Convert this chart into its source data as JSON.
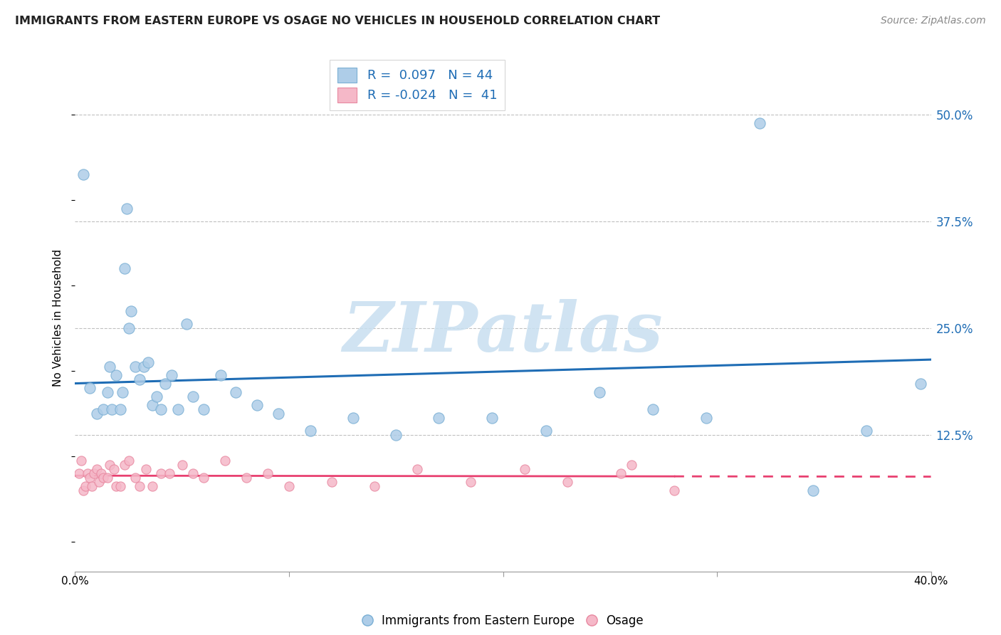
{
  "title": "IMMIGRANTS FROM EASTERN EUROPE VS OSAGE NO VEHICLES IN HOUSEHOLD CORRELATION CHART",
  "source": "Source: ZipAtlas.com",
  "ylabel": "No Vehicles in Household",
  "legend_label1": "Immigrants from Eastern Europe",
  "legend_label2": "Osage",
  "R1": 0.097,
  "N1": 44,
  "R2": -0.024,
  "N2": 41,
  "blue_fill": "#aecde8",
  "blue_edge": "#7aafd4",
  "pink_fill": "#f5b8c8",
  "pink_edge": "#e888a0",
  "line_blue": "#1f6db5",
  "line_pink": "#e84070",
  "watermark_color": "#c8dff0",
  "xlim": [
    0.0,
    0.4
  ],
  "ylim": [
    -0.035,
    0.56
  ],
  "ytick_vals": [
    0.125,
    0.25,
    0.375,
    0.5
  ],
  "ytick_labels": [
    "12.5%",
    "25.0%",
    "37.5%",
    "50.0%"
  ],
  "blue_x": [
    0.004,
    0.007,
    0.01,
    0.013,
    0.015,
    0.016,
    0.017,
    0.019,
    0.021,
    0.022,
    0.023,
    0.024,
    0.025,
    0.026,
    0.028,
    0.03,
    0.032,
    0.034,
    0.036,
    0.038,
    0.04,
    0.042,
    0.045,
    0.048,
    0.052,
    0.055,
    0.06,
    0.068,
    0.075,
    0.085,
    0.095,
    0.11,
    0.13,
    0.15,
    0.17,
    0.195,
    0.22,
    0.245,
    0.27,
    0.295,
    0.32,
    0.345,
    0.37,
    0.395
  ],
  "blue_y": [
    0.43,
    0.18,
    0.15,
    0.155,
    0.175,
    0.205,
    0.155,
    0.195,
    0.155,
    0.175,
    0.32,
    0.39,
    0.25,
    0.27,
    0.205,
    0.19,
    0.205,
    0.21,
    0.16,
    0.17,
    0.155,
    0.185,
    0.195,
    0.155,
    0.255,
    0.17,
    0.155,
    0.195,
    0.175,
    0.16,
    0.15,
    0.13,
    0.145,
    0.125,
    0.145,
    0.145,
    0.13,
    0.175,
    0.155,
    0.145,
    0.49,
    0.06,
    0.13,
    0.185
  ],
  "pink_x": [
    0.002,
    0.003,
    0.004,
    0.005,
    0.006,
    0.007,
    0.008,
    0.009,
    0.01,
    0.011,
    0.012,
    0.013,
    0.015,
    0.016,
    0.018,
    0.019,
    0.021,
    0.023,
    0.025,
    0.028,
    0.03,
    0.033,
    0.036,
    0.04,
    0.044,
    0.05,
    0.055,
    0.06,
    0.07,
    0.08,
    0.09,
    0.1,
    0.12,
    0.14,
    0.16,
    0.185,
    0.21,
    0.23,
    0.255,
    0.28,
    0.26
  ],
  "pink_y": [
    0.08,
    0.095,
    0.06,
    0.065,
    0.08,
    0.075,
    0.065,
    0.08,
    0.085,
    0.07,
    0.08,
    0.075,
    0.075,
    0.09,
    0.085,
    0.065,
    0.065,
    0.09,
    0.095,
    0.075,
    0.065,
    0.085,
    0.065,
    0.08,
    0.08,
    0.09,
    0.08,
    0.075,
    0.095,
    0.075,
    0.08,
    0.065,
    0.07,
    0.065,
    0.085,
    0.07,
    0.085,
    0.07,
    0.08,
    0.06,
    0.09
  ]
}
